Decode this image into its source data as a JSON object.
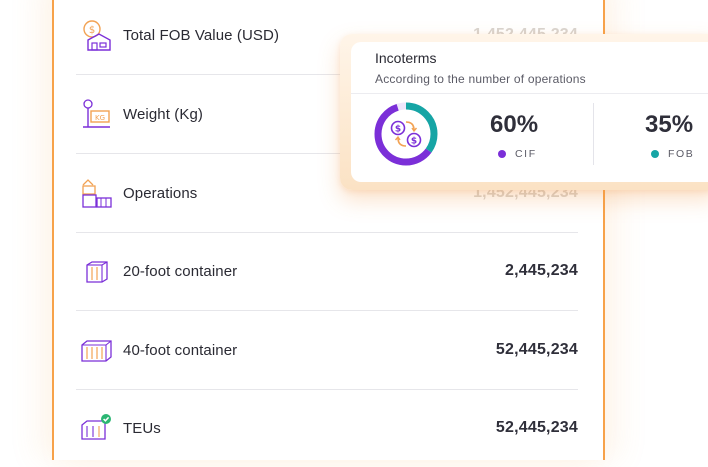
{
  "stats": [
    {
      "label": "Total FOB Value (USD)",
      "value": "1,452,445,234",
      "icon": "money-warehouse-icon"
    },
    {
      "label": "Weight (Kg)",
      "value": "",
      "icon": "weight-scale-icon"
    },
    {
      "label": "Operations",
      "value": "1,452,445,234",
      "icon": "containers-stack-icon"
    },
    {
      "label": "20-foot container",
      "value": "2,445,234",
      "icon": "container-20ft-icon"
    },
    {
      "label": "40-foot container",
      "value": "52,445,234",
      "icon": "container-40ft-icon"
    },
    {
      "label": "TEUs",
      "value": "52,445,234",
      "icon": "container-teu-check-icon"
    }
  ],
  "incoterms": {
    "title": "Incoterms",
    "subtitle": "According to the number of operations",
    "items": [
      {
        "percent": "60%",
        "label": "CIF",
        "color": "#7b2fd8",
        "fraction": 0.6
      },
      {
        "percent": "35%",
        "label": "FOB",
        "color": "#16a5a5",
        "fraction": 0.35
      }
    ]
  },
  "colors": {
    "frame_orange": "#f7a24a",
    "purple": "#7b2fd8",
    "teal": "#16a5a5",
    "text_dark": "#2f2f3a",
    "faded_value": "#d9d4cf"
  }
}
